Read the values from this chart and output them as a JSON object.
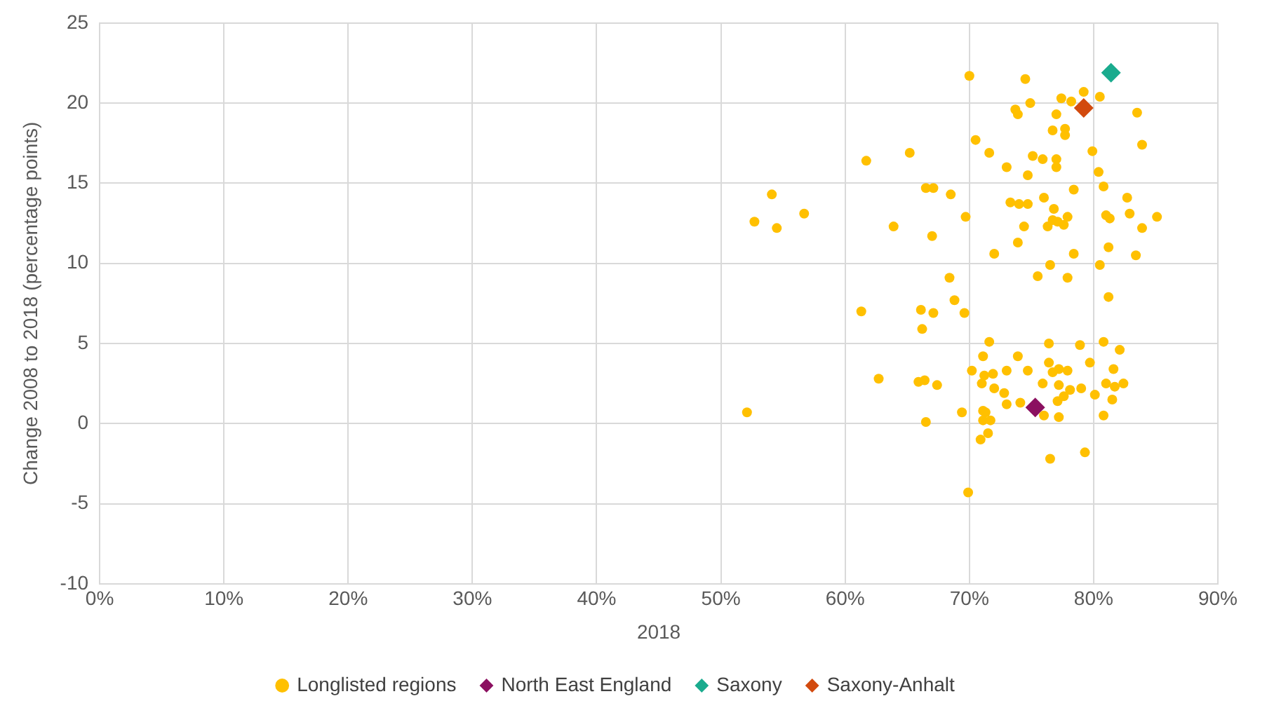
{
  "chart_data": {
    "type": "scatter",
    "xlabel": "2018",
    "ylabel": "Change 2008 to 2018 (percentage points)",
    "xlim": [
      0,
      90
    ],
    "xticks": [
      {
        "value": 0,
        "label": "0%"
      },
      {
        "value": 10,
        "label": "10%"
      },
      {
        "value": 20,
        "label": "20%"
      },
      {
        "value": 30,
        "label": "30%"
      },
      {
        "value": 40,
        "label": "40%"
      },
      {
        "value": 50,
        "label": "50%"
      },
      {
        "value": 60,
        "label": "60%"
      },
      {
        "value": 70,
        "label": "70%"
      },
      {
        "value": 80,
        "label": "80%"
      },
      {
        "value": 90,
        "label": "90%"
      }
    ],
    "ylim": [
      -10,
      25
    ],
    "yticks": [
      -10,
      -5,
      0,
      5,
      10,
      15,
      20,
      25
    ],
    "grid": true,
    "legend": "bottom",
    "series": [
      {
        "name": "Longlisted regions",
        "color": "#ffc000",
        "marker": "circle",
        "x": [
          70.0,
          74.5,
          79.2,
          80.5,
          77.4,
          78.2,
          74.9,
          73.7,
          73.9,
          77.0,
          83.5,
          76.7,
          77.7,
          77.7,
          83.9,
          70.5,
          61.7,
          65.2,
          71.6,
          75.1,
          75.9,
          77.0,
          77.0,
          79.9,
          73.0,
          74.7,
          80.4,
          80.8,
          66.5,
          67.1,
          54.1,
          68.5,
          78.4,
          82.7,
          76.0,
          73.3,
          74.0,
          74.7,
          76.8,
          56.7,
          81.0,
          81.3,
          82.9,
          85.1,
          52.7,
          54.5,
          63.9,
          69.7,
          74.4,
          76.3,
          76.7,
          77.1,
          77.6,
          77.9,
          83.9,
          67.0,
          73.9,
          72.0,
          78.4,
          81.2,
          83.4,
          76.5,
          80.5,
          68.4,
          75.5,
          77.9,
          81.2,
          61.3,
          66.1,
          67.1,
          68.8,
          69.6,
          66.2,
          71.6,
          76.4,
          78.9,
          80.8,
          82.1,
          71.1,
          73.9,
          76.4,
          79.7,
          70.2,
          71.2,
          71.9,
          73.0,
          74.7,
          76.7,
          77.2,
          77.9,
          81.6,
          62.7,
          65.9,
          66.4,
          67.4,
          71.0,
          72.0,
          75.9,
          77.2,
          78.1,
          79.0,
          81.0,
          81.7,
          82.4,
          72.8,
          77.6,
          77.1,
          80.1,
          73.0,
          74.1,
          81.5,
          76.0,
          77.2,
          80.8,
          52.1,
          69.4,
          71.1,
          71.3,
          71.1,
          71.7,
          66.5,
          71.5,
          70.9,
          79.3,
          76.5,
          69.9
        ],
        "values": [
          21.7,
          21.5,
          20.7,
          20.4,
          20.3,
          20.1,
          20.0,
          19.6,
          19.3,
          19.3,
          19.4,
          18.3,
          18.4,
          18.0,
          17.4,
          17.7,
          16.4,
          16.9,
          16.9,
          16.7,
          16.5,
          16.5,
          16.0,
          17.0,
          16.0,
          15.5,
          15.7,
          14.8,
          14.7,
          14.7,
          14.3,
          14.3,
          14.6,
          14.1,
          14.1,
          13.8,
          13.7,
          13.7,
          13.4,
          13.1,
          13.0,
          12.8,
          13.1,
          12.9,
          12.6,
          12.2,
          12.3,
          12.9,
          12.3,
          12.3,
          12.7,
          12.6,
          12.4,
          12.9,
          12.2,
          11.7,
          11.3,
          10.6,
          10.6,
          11.0,
          10.5,
          9.9,
          9.9,
          9.1,
          9.2,
          9.1,
          7.9,
          7.0,
          7.1,
          6.9,
          7.7,
          6.9,
          5.9,
          5.1,
          5.0,
          4.9,
          5.1,
          4.6,
          4.2,
          4.2,
          3.8,
          3.8,
          3.3,
          3.0,
          3.1,
          3.3,
          3.3,
          3.2,
          3.4,
          3.3,
          3.4,
          2.8,
          2.6,
          2.7,
          2.4,
          2.5,
          2.2,
          2.5,
          2.4,
          2.1,
          2.2,
          2.5,
          2.3,
          2.5,
          1.9,
          1.7,
          1.4,
          1.8,
          1.2,
          1.3,
          1.5,
          0.5,
          0.4,
          0.5,
          0.7,
          0.7,
          0.8,
          0.7,
          0.2,
          0.2,
          0.1,
          -0.6,
          -1.0,
          -1.8,
          -2.2,
          -4.3
        ]
      },
      {
        "name": "North East England",
        "color": "#8b1060",
        "marker": "diamond",
        "x": [
          75.3
        ],
        "values": [
          1.0
        ]
      },
      {
        "name": "Saxony",
        "color": "#1aab8e",
        "marker": "diamond",
        "x": [
          81.4
        ],
        "values": [
          21.9
        ]
      },
      {
        "name": "Saxony-Anhalt",
        "color": "#d24a0e",
        "marker": "diamond",
        "x": [
          79.2
        ],
        "values": [
          19.7
        ]
      }
    ]
  }
}
